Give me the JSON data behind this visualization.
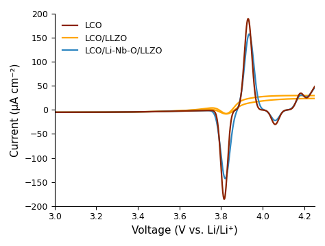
{
  "xlabel": "Voltage (V vs. Li/Li⁺)",
  "ylabel": "Current (μA cm⁻²)",
  "xlim": [
    3.0,
    4.25
  ],
  "ylim": [
    -200,
    200
  ],
  "xticks": [
    3.0,
    3.2,
    3.4,
    3.6,
    3.8,
    4.0,
    4.2
  ],
  "yticks": [
    -200,
    -150,
    -100,
    -50,
    0,
    50,
    100,
    150,
    200
  ],
  "legend": [
    "LCO",
    "LCO/LLZO",
    "LCO/Li-Nb-O/LLZO"
  ],
  "colors": {
    "LCO": "#8B2200",
    "LLZO": "#FFA500",
    "LNO": "#2E86C1"
  },
  "linewidth": 1.6
}
